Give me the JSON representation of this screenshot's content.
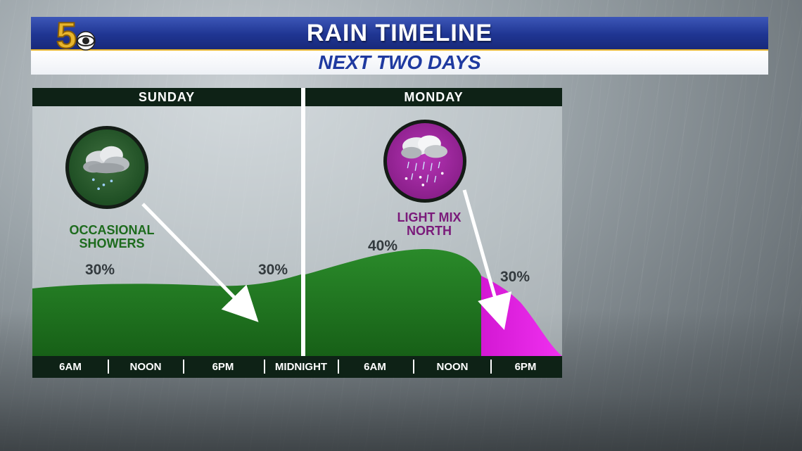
{
  "header": {
    "title": "RAIN TIMELINE",
    "subtitle": "NEXT TWO DAYS",
    "logo_text": "5",
    "accent_color": "#1f3592",
    "gold_color": "#e7b52c"
  },
  "chart_data": {
    "type": "area",
    "title": "RAIN TIMELINE",
    "subtitle": "NEXT TWO DAYS",
    "days": [
      "SUNDAY",
      "MONDAY"
    ],
    "x_ticks": [
      "6AM",
      "NOON",
      "6PM",
      "MIDNIGHT",
      "6AM",
      "NOON",
      "6PM"
    ],
    "series": [
      {
        "type": "rain",
        "color": "#1d7a1d"
      },
      {
        "type": "mix",
        "color": "#e020e0"
      }
    ],
    "annotations": [
      {
        "label": "30%",
        "value": 30,
        "position": "Sunday morning"
      },
      {
        "label": "30%",
        "value": 30,
        "position": "Sunday night"
      },
      {
        "label": "40%",
        "value": 40,
        "position": "Monday morning"
      },
      {
        "label": "30%",
        "value": 30,
        "position": "Monday evening"
      }
    ],
    "callouts": [
      {
        "text_lines": [
          "OCCASIONAL",
          "SHOWERS"
        ],
        "icon": "rain-cloud-icon",
        "color": "#1d6b1d"
      },
      {
        "text_lines": [
          "LIGHT MIX",
          "NORTH"
        ],
        "icon": "wintry-mix-cloud-icon",
        "color": "#7a1a7a"
      }
    ]
  }
}
